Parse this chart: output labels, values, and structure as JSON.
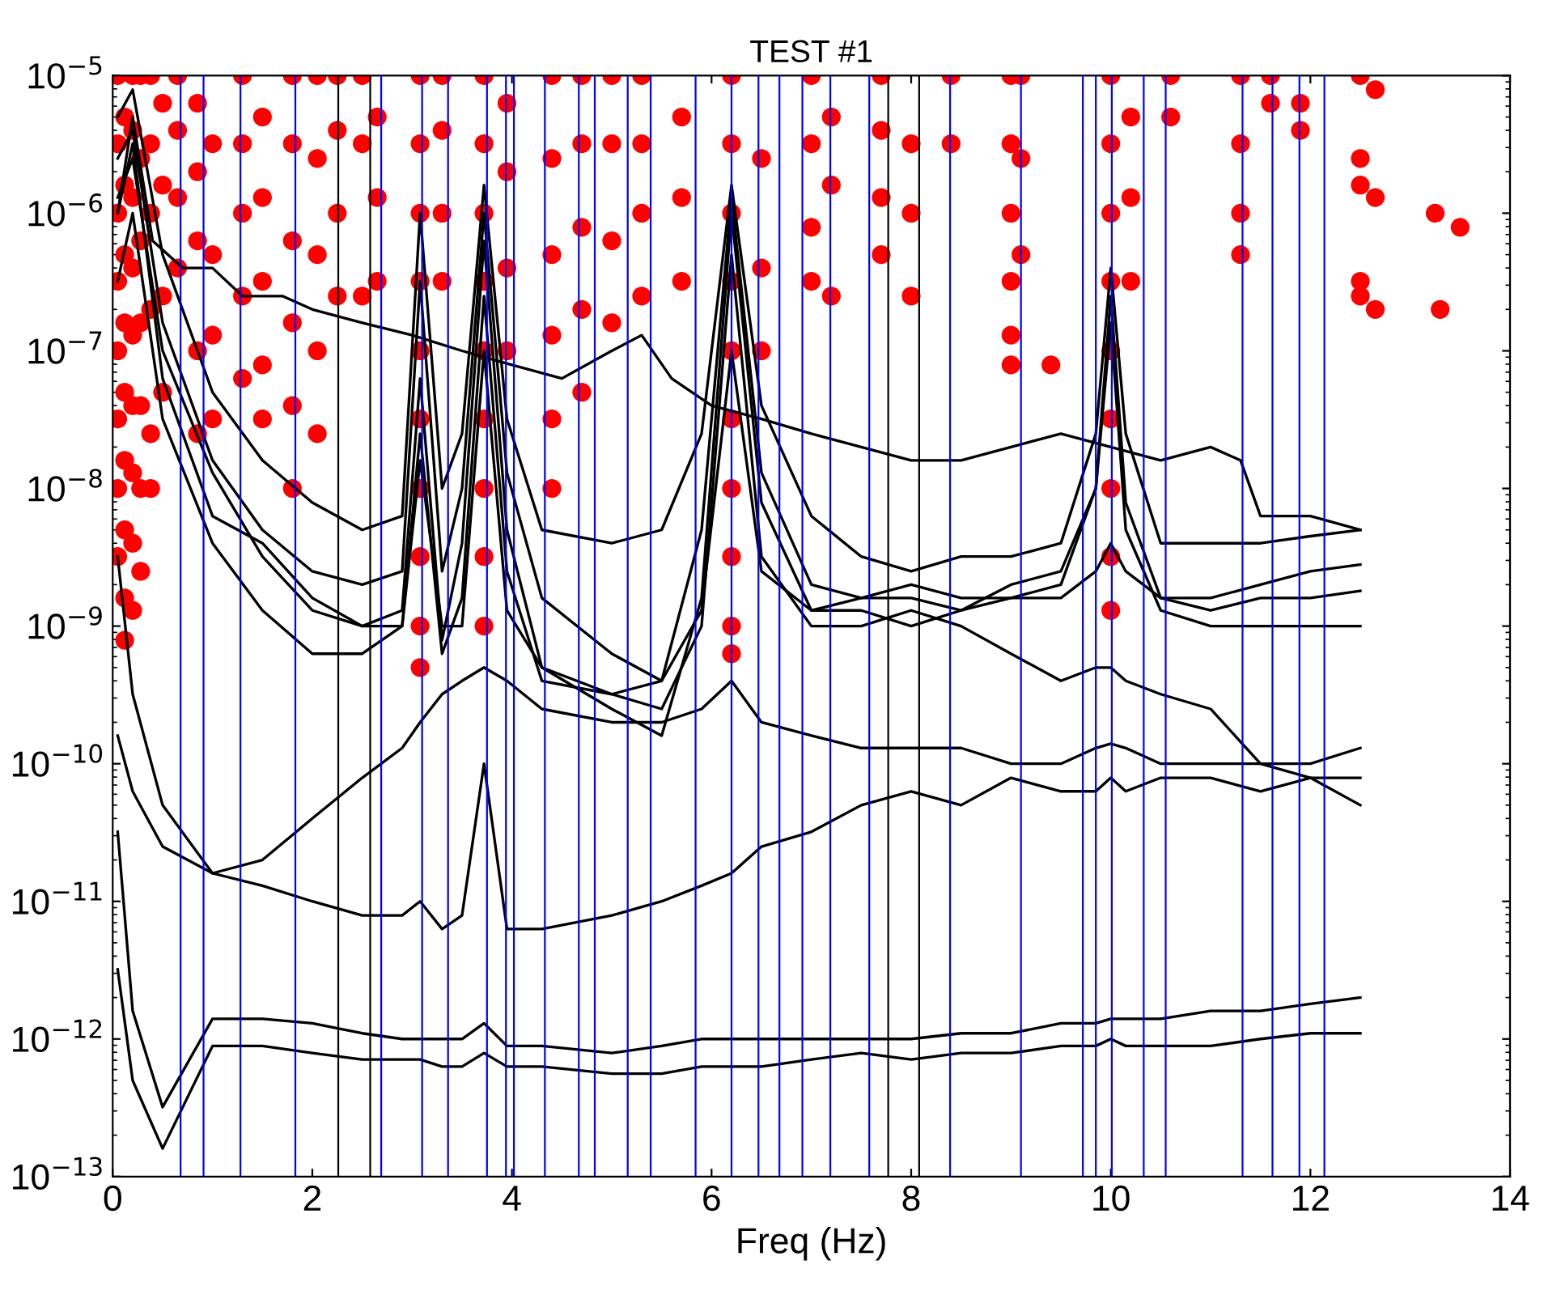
{
  "chart_data": {
    "type": "line",
    "title": "TEST #1",
    "xlabel": "Freq (Hz)",
    "xlim": [
      0,
      14
    ],
    "xticks": [
      0,
      2,
      4,
      6,
      8,
      10,
      12,
      14
    ],
    "ylim": [
      1e-13,
      1e-05
    ],
    "log": "y",
    "yticks": [
      {
        "value": 1e-13,
        "label": "10$^{−13}$"
      },
      {
        "value": 1e-12,
        "label": "10$^{−12}$"
      },
      {
        "value": 1e-11,
        "label": "10$^{−11}$"
      },
      {
        "value": 1e-10,
        "label": "10$^{−10}$"
      },
      {
        "value": 1e-09,
        "label": "10$^{−9}$"
      },
      {
        "value": 1e-08,
        "label": "10$^{−8}$"
      },
      {
        "value": 1e-07,
        "label": "10$^{−7}$"
      },
      {
        "value": 1e-06,
        "label": "10$^{−6}$"
      },
      {
        "value": 1e-05,
        "label": "10$^{−5}$"
      }
    ],
    "grid": false,
    "legend": false,
    "line_style": "solid",
    "marker": "none",
    "x": [
      0.05,
      0.2,
      0.5,
      1.0,
      1.5,
      2.0,
      2.5,
      2.9,
      3.08,
      3.3,
      3.5,
      3.72,
      3.95,
      4.3,
      5.0,
      5.5,
      5.9,
      6.2,
      6.5,
      7.0,
      7.5,
      8.0,
      8.5,
      9.0,
      9.5,
      9.85,
      10.0,
      10.15,
      10.5,
      11.0,
      11.5,
      12.0,
      12.5
    ],
    "series": [
      {
        "color": "#000000",
        "x": [
          0.05,
          0.2,
          0.4,
          0.7,
          1.0,
          1.3,
          1.7,
          2.0,
          2.5,
          3.0,
          3.5,
          4.0,
          4.5,
          5.0,
          5.3,
          5.6,
          6.0,
          6.5,
          7.0,
          7.5,
          8.0,
          8.5,
          9.0,
          9.5,
          10.0,
          10.5,
          11.0,
          11.3,
          11.5,
          12.0,
          12.5
        ],
        "values": [
          1e-06,
          5e-06,
          6.3e-07,
          4e-07,
          4e-07,
          2.5e-07,
          2.5e-07,
          2e-07,
          1.6e-07,
          1.3e-07,
          1e-07,
          7.9e-08,
          6.3e-08,
          1e-07,
          1.3e-07,
          6.3e-08,
          4e-08,
          3.2e-08,
          2.5e-08,
          2e-08,
          1.6e-08,
          1.6e-08,
          2e-08,
          2.5e-08,
          2e-08,
          1.6e-08,
          2e-08,
          1.6e-08,
          6.3e-09,
          6.3e-09,
          5e-09
        ]
      },
      {
        "color": "#000000",
        "values": [
          5e-06,
          7.9e-06,
          5e-07,
          5e-08,
          1.6e-08,
          7.9e-09,
          5e-09,
          6.3e-09,
          1e-06,
          1e-08,
          2.5e-08,
          1.6e-06,
          3.2e-08,
          5e-09,
          4e-09,
          5e-09,
          2.5e-08,
          1.6e-06,
          4e-08,
          6.3e-09,
          3.2e-09,
          2.5e-09,
          3.2e-09,
          3.2e-09,
          4e-09,
          2.5e-08,
          4e-07,
          2.5e-08,
          4e-09,
          4e-09,
          4e-09,
          4.5e-09,
          5e-09
        ]
      },
      {
        "color": "#000000",
        "values": [
          2.5e-06,
          4e-06,
          1.6e-07,
          1.6e-08,
          5e-09,
          2.5e-09,
          2e-09,
          2.5e-09,
          3.2e-07,
          2.5e-09,
          1e-08,
          1e-06,
          1.3e-08,
          1.6e-09,
          6.3e-10,
          4e-10,
          5e-09,
          1.3e-06,
          1.3e-08,
          2e-09,
          1.6e-09,
          1.6e-09,
          1.3e-09,
          1.6e-09,
          2e-09,
          1e-08,
          2.5e-07,
          7.9e-09,
          1.6e-09,
          1.6e-09,
          2e-09,
          2.5e-09,
          2.8e-09
        ]
      },
      {
        "color": "#000000",
        "values": [
          1e-06,
          3.2e-06,
          6.3e-08,
          6.3e-09,
          4e-09,
          1.6e-09,
          1e-09,
          1.3e-09,
          6.3e-08,
          7.9e-10,
          4e-09,
          6.3e-07,
          5e-09,
          5e-10,
          2.5e-10,
          1.6e-10,
          1.6e-09,
          1e-06,
          7.9e-09,
          1.3e-09,
          1.3e-09,
          1e-09,
          1.3e-09,
          2e-09,
          2.5e-09,
          1e-08,
          1.6e-07,
          5e-09,
          1.3e-09,
          1e-09,
          1e-09,
          1e-09,
          1e-09
        ]
      },
      {
        "color": "#000000",
        "values": [
          3.2e-07,
          1e-06,
          3.2e-08,
          4e-09,
          1.3e-09,
          6.3e-10,
          6.3e-10,
          1e-09,
          2.5e-08,
          6.3e-10,
          1.6e-09,
          2.5e-07,
          2.5e-09,
          4e-10,
          3.2e-10,
          2.5e-10,
          1e-09,
          5e-07,
          3.2e-09,
          1e-09,
          1e-09,
          1.3e-09,
          1e-09,
          6.3e-10,
          4e-10,
          5e-10,
          5e-10,
          4e-10,
          3.2e-10,
          2.5e-10,
          1e-10,
          1e-10,
          1.3e-10
        ]
      },
      {
        "color": "#000000",
        "values": [
          1.3e-06,
          2.5e-06,
          1e-07,
          1.3e-08,
          3.2e-09,
          1.3e-09,
          1e-09,
          1e-09,
          1.6e-08,
          1e-09,
          1e-09,
          1e-07,
          1.3e-09,
          5e-10,
          3.2e-10,
          4e-10,
          1.3e-09,
          1e-07,
          2.5e-09,
          1.3e-09,
          1.6e-09,
          2e-09,
          1.6e-09,
          1.6e-09,
          1.6e-09,
          2.5e-09,
          4e-09,
          2.5e-09,
          1.6e-09,
          1.3e-09,
          1.6e-09,
          1.6e-09,
          1.8e-09
        ]
      },
      {
        "color": "#000000",
        "values": [
          3.2e-09,
          3.2e-10,
          5e-11,
          1.6e-11,
          2e-11,
          4e-11,
          7.9e-11,
          1.3e-10,
          2e-10,
          3.2e-10,
          4e-10,
          5e-10,
          4e-10,
          2.5e-10,
          2e-10,
          2e-10,
          2.5e-10,
          4e-10,
          2e-10,
          1.6e-10,
          1.3e-10,
          1.3e-10,
          1.3e-10,
          1e-10,
          1e-10,
          1.3e-10,
          1.4e-10,
          1.3e-10,
          1e-10,
          1e-10,
          1e-10,
          7.9e-11,
          7.9e-11
        ]
      },
      {
        "color": "#000000",
        "values": [
          1.6e-10,
          6.3e-11,
          2.5e-11,
          1.6e-11,
          1.3e-11,
          1e-11,
          7.9e-12,
          7.9e-12,
          1e-11,
          6.3e-12,
          7.9e-12,
          1e-10,
          6.3e-12,
          6.3e-12,
          7.9e-12,
          1e-11,
          1.3e-11,
          1.6e-11,
          2.5e-11,
          3.2e-11,
          5e-11,
          6.3e-11,
          5e-11,
          7.9e-11,
          6.3e-11,
          6.3e-11,
          7.9e-11,
          6.3e-11,
          7.9e-11,
          7.9e-11,
          6.3e-11,
          7.9e-11,
          5e-11
        ]
      },
      {
        "color": "#000000",
        "values": [
          3.2e-11,
          1.6e-12,
          3.2e-13,
          1.4e-12,
          1.4e-12,
          1.3e-12,
          1.1e-12,
          1e-12,
          1e-12,
          1e-12,
          1e-12,
          1.3e-12,
          8.9e-13,
          8.9e-13,
          7.9e-13,
          8.9e-13,
          1e-12,
          1e-12,
          1e-12,
          1e-12,
          1e-12,
          1e-12,
          1.1e-12,
          1.1e-12,
          1.3e-12,
          1.3e-12,
          1.4e-12,
          1.4e-12,
          1.4e-12,
          1.6e-12,
          1.6e-12,
          1.8e-12,
          2e-12
        ]
      },
      {
        "color": "#000000",
        "values": [
          3.2e-12,
          5e-13,
          1.6e-13,
          8.9e-13,
          8.9e-13,
          7.9e-13,
          7.1e-13,
          7.1e-13,
          7.1e-13,
          6.3e-13,
          6.3e-13,
          7.9e-13,
          6.3e-13,
          6.3e-13,
          5.6e-13,
          5.6e-13,
          6.3e-13,
          6.3e-13,
          6.3e-13,
          7.1e-13,
          7.9e-13,
          7.1e-13,
          7.9e-13,
          7.9e-13,
          8.9e-13,
          8.9e-13,
          1e-12,
          8.9e-13,
          8.9e-13,
          8.9e-13,
          1e-12,
          1.1e-12,
          1.1e-12
        ]
      },
      {
        "type": "scatter",
        "color": "#ff0000",
        "marker": "circle",
        "x": [
          0.05,
          0.05,
          0.05,
          0.05,
          0.05,
          0.05,
          0.05,
          0.05,
          0.12,
          0.12,
          0.12,
          0.12,
          0.12,
          0.12,
          0.12,
          0.12,
          0.12,
          0.2,
          0.2,
          0.2,
          0.2,
          0.2,
          0.2,
          0.2,
          0.2,
          0.2,
          0.28,
          0.28,
          0.28,
          0.28,
          0.28,
          0.28,
          0.28,
          0.38,
          0.38,
          0.38,
          0.38,
          0.38,
          0.38,
          0.5,
          0.5,
          0.5,
          0.5,
          0.65,
          0.65,
          0.65,
          0.65,
          0.85,
          0.85,
          0.85,
          0.85,
          0.85,
          1.0,
          1.0,
          1.0,
          1.0,
          1.3,
          1.3,
          1.3,
          1.3,
          1.3,
          1.5,
          1.5,
          1.5,
          1.5,
          1.5,
          1.8,
          1.8,
          1.8,
          1.8,
          1.8,
          1.8,
          2.05,
          2.05,
          2.05,
          2.05,
          2.05,
          2.25,
          2.25,
          2.25,
          2.25,
          2.5,
          2.5,
          2.5,
          2.65,
          2.65,
          2.65,
          3.08,
          3.08,
          3.08,
          3.08,
          3.08,
          3.08,
          3.08,
          3.08,
          3.08,
          3.08,
          3.3,
          3.3,
          3.3,
          3.3,
          3.72,
          3.72,
          3.72,
          3.72,
          3.72,
          3.72,
          3.72,
          3.72,
          3.72,
          3.95,
          3.95,
          3.95,
          3.95,
          4.4,
          4.4,
          4.4,
          4.4,
          4.4,
          4.4,
          4.7,
          4.7,
          4.7,
          4.7,
          4.7,
          5.0,
          5.0,
          5.0,
          5.0,
          5.3,
          5.3,
          5.3,
          5.3,
          5.7,
          5.7,
          5.7,
          6.2,
          6.2,
          6.2,
          6.2,
          6.2,
          6.2,
          6.2,
          6.2,
          6.2,
          6.2,
          6.5,
          6.5,
          6.5,
          7.0,
          7.0,
          7.0,
          7.0,
          7.2,
          7.2,
          7.2,
          7.7,
          7.7,
          7.7,
          7.7,
          8.0,
          8.0,
          8.0,
          8.4,
          8.4,
          9.0,
          9.0,
          9.0,
          9.0,
          9.0,
          9.0,
          9.1,
          9.1,
          9.1,
          9.4,
          10.0,
          10.0,
          10.0,
          10.0,
          10.0,
          10.0,
          10.0,
          10.0,
          10.0,
          10.2,
          10.2,
          10.2,
          10.6,
          10.6,
          11.3,
          11.3,
          11.3,
          11.3,
          11.6,
          11.6,
          11.9,
          11.9,
          12.5,
          12.5,
          12.5,
          12.5,
          12.5,
          12.65,
          12.65,
          12.65,
          13.25,
          13.3,
          13.5
        ],
        "values": [
          1e-05,
          3.2e-06,
          1e-06,
          3.2e-07,
          1e-07,
          3.2e-08,
          1e-08,
          3.2e-09,
          5e-06,
          1.6e-06,
          5e-07,
          1.6e-07,
          5e-08,
          1.6e-08,
          5e-09,
          1.6e-09,
          7.9e-10,
          1e-05,
          4e-06,
          1.3e-06,
          4e-07,
          1.3e-07,
          4e-08,
          1.3e-08,
          4e-09,
          1.3e-09,
          1e-05,
          2.5e-06,
          6.3e-07,
          1.6e-07,
          4e-08,
          1e-08,
          2.5e-09,
          1e-05,
          3.2e-06,
          1e-06,
          2e-07,
          2.5e-08,
          1e-08,
          6.3e-06,
          1.6e-06,
          2.5e-07,
          5e-08,
          1e-05,
          4e-06,
          1.3e-06,
          4e-07,
          6.3e-06,
          2e-06,
          6.3e-07,
          1e-07,
          2.5e-08,
          3.2e-06,
          5e-07,
          1.3e-07,
          3.2e-08,
          1e-05,
          3.2e-06,
          1e-06,
          2.5e-07,
          6.3e-08,
          5e-06,
          1.3e-06,
          3.2e-07,
          7.9e-08,
          3.2e-08,
          1e-05,
          3.2e-06,
          6.3e-07,
          1.6e-07,
          4e-08,
          1e-08,
          1e-05,
          2.5e-06,
          5e-07,
          1e-07,
          2.5e-08,
          1e-05,
          4e-06,
          1e-06,
          2.5e-07,
          1e-05,
          3.2e-06,
          2.5e-07,
          5e-06,
          1.3e-06,
          3.2e-07,
          1e-05,
          3.2e-06,
          1e-06,
          3.2e-07,
          1e-07,
          3.2e-08,
          1e-08,
          3.2e-09,
          1e-09,
          5e-10,
          1e-05,
          4e-06,
          1e-06,
          3.2e-07,
          1e-05,
          3.2e-06,
          1e-06,
          3.2e-07,
          1e-07,
          3.2e-08,
          1e-08,
          3.2e-09,
          1e-09,
          6.3e-06,
          2e-06,
          4e-07,
          1e-07,
          1e-05,
          2.5e-06,
          5e-07,
          1.3e-07,
          3.2e-08,
          1e-08,
          1e-05,
          3.2e-06,
          7.9e-07,
          2e-07,
          5e-08,
          1e-05,
          3.2e-06,
          6.3e-07,
          1.6e-07,
          1e-05,
          3.2e-06,
          1e-06,
          2.5e-07,
          5e-06,
          1.3e-06,
          3.2e-07,
          1e-05,
          3.2e-06,
          1e-06,
          3.2e-07,
          1e-07,
          3.2e-08,
          1e-08,
          3.2e-09,
          1e-09,
          6.3e-10,
          2.5e-06,
          4e-07,
          1e-07,
          1e-05,
          3.2e-06,
          7.9e-07,
          3.2e-07,
          5e-06,
          1.6e-06,
          2.5e-07,
          1e-05,
          4e-06,
          1.3e-06,
          5e-07,
          3.2e-06,
          1e-06,
          2.5e-07,
          1e-05,
          3.2e-06,
          1e-05,
          3.2e-06,
          1e-06,
          3.2e-07,
          1.3e-07,
          7.9e-08,
          1e-05,
          2.5e-06,
          5e-07,
          7.9e-08,
          1e-05,
          3.2e-06,
          1e-06,
          3.2e-07,
          1e-07,
          3.2e-08,
          1e-08,
          3.2e-09,
          1.3e-09,
          5e-06,
          1.3e-06,
          3.2e-07,
          1e-05,
          5e-06,
          1e-05,
          3.2e-06,
          1e-06,
          5e-07,
          1e-05,
          6.3e-06,
          6.3e-06,
          4e-06,
          1e-05,
          2.5e-06,
          1.6e-06,
          3.2e-07,
          2.5e-07,
          7.9e-06,
          1.3e-06,
          2e-07,
          1e-06,
          2e-07,
          7.9e-07
        ]
      }
    ],
    "ref_lines": [
      {
        "axis": "x",
        "value": 0.68,
        "color": "#0000ff"
      },
      {
        "axis": "x",
        "value": 0.91,
        "color": "#0000ff"
      },
      {
        "axis": "x",
        "value": 1.28,
        "color": "#0000ff"
      },
      {
        "axis": "x",
        "value": 1.83,
        "color": "#0000ff"
      },
      {
        "axis": "x",
        "value": 2.26,
        "color": "#000000"
      },
      {
        "axis": "x",
        "value": 2.58,
        "color": "#000000"
      },
      {
        "axis": "x",
        "value": 2.69,
        "color": "#0000ff"
      },
      {
        "axis": "x",
        "value": 3.1,
        "color": "#0000ff"
      },
      {
        "axis": "x",
        "value": 3.36,
        "color": "#0000ff"
      },
      {
        "axis": "x",
        "value": 3.75,
        "color": "#0000ff"
      },
      {
        "axis": "x",
        "value": 3.94,
        "color": "#0000ff"
      },
      {
        "axis": "x",
        "value": 4.02,
        "color": "#0000ff"
      },
      {
        "axis": "x",
        "value": 4.33,
        "color": "#0000ff"
      },
      {
        "axis": "x",
        "value": 4.67,
        "color": "#0000ff"
      },
      {
        "axis": "x",
        "value": 4.83,
        "color": "#0000ff"
      },
      {
        "axis": "x",
        "value": 5.16,
        "color": "#0000ff"
      },
      {
        "axis": "x",
        "value": 5.39,
        "color": "#0000ff"
      },
      {
        "axis": "x",
        "value": 5.84,
        "color": "#0000ff"
      },
      {
        "axis": "x",
        "value": 6.2,
        "color": "#0000ff"
      },
      {
        "axis": "x",
        "value": 6.47,
        "color": "#0000ff"
      },
      {
        "axis": "x",
        "value": 6.68,
        "color": "#0000ff"
      },
      {
        "axis": "x",
        "value": 6.91,
        "color": "#0000ff"
      },
      {
        "axis": "x",
        "value": 7.19,
        "color": "#0000ff"
      },
      {
        "axis": "x",
        "value": 7.58,
        "color": "#0000ff"
      },
      {
        "axis": "x",
        "value": 7.77,
        "color": "#000000"
      },
      {
        "axis": "x",
        "value": 8.08,
        "color": "#000000"
      },
      {
        "axis": "x",
        "value": 8.39,
        "color": "#0000ff"
      },
      {
        "axis": "x",
        "value": 9.1,
        "color": "#0000ff"
      },
      {
        "axis": "x",
        "value": 9.72,
        "color": "#0000ff"
      },
      {
        "axis": "x",
        "value": 9.85,
        "color": "#0000ff"
      },
      {
        "axis": "x",
        "value": 10.01,
        "color": "#0000ff"
      },
      {
        "axis": "x",
        "value": 10.33,
        "color": "#0000ff"
      },
      {
        "axis": "x",
        "value": 10.55,
        "color": "#0000ff"
      },
      {
        "axis": "x",
        "value": 11.32,
        "color": "#0000ff"
      },
      {
        "axis": "x",
        "value": 11.62,
        "color": "#0000ff"
      },
      {
        "axis": "x",
        "value": 11.89,
        "color": "#0000ff"
      },
      {
        "axis": "x",
        "value": 12.14,
        "color": "#0000ff"
      }
    ]
  }
}
